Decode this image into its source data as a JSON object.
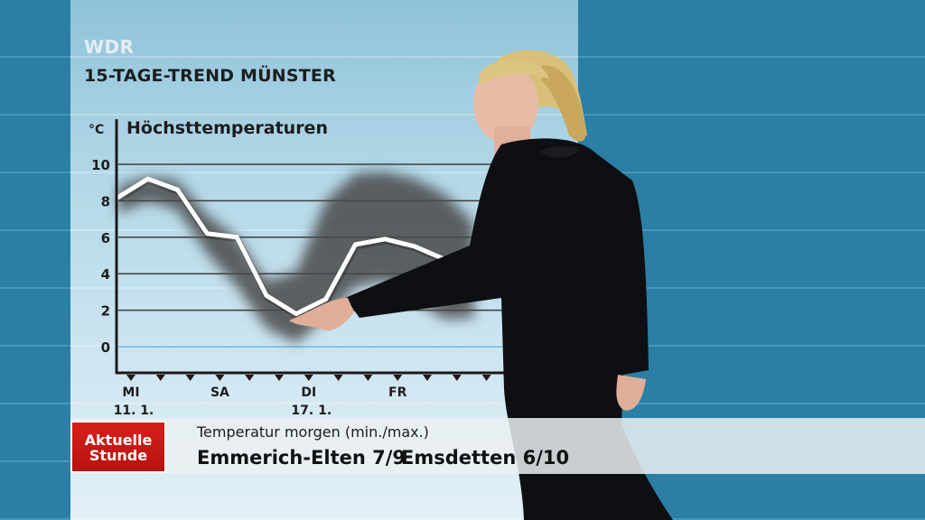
{
  "broadcaster": "WDR",
  "title": "15-TAGE-TREND MÜNSTER",
  "chart_data": {
    "type": "line",
    "title": "Höchsttemperaturen",
    "unit_label": "°C",
    "yticks": [
      10,
      8,
      6,
      4,
      2,
      0
    ],
    "ylim": [
      0,
      10
    ],
    "x": [
      0,
      1,
      2,
      3,
      4,
      5,
      6,
      7,
      8,
      9,
      10,
      11,
      12
    ],
    "values": [
      8.2,
      9.2,
      8.6,
      6.2,
      6.0,
      2.8,
      1.8,
      2.6,
      5.6,
      5.9,
      5.5,
      4.8,
      4.4
    ],
    "band_low": [
      7.3,
      8.0,
      7.5,
      5.1,
      3.3,
      1.0,
      0.2,
      1.6,
      3.3,
      3.6,
      2.6,
      1.5,
      1.6
    ],
    "band_high": [
      8.8,
      9.3,
      9.1,
      7.2,
      6.0,
      3.6,
      4.1,
      8.0,
      9.5,
      9.6,
      9.2,
      8.4,
      6.8
    ],
    "xlabels": [
      {
        "i": 0,
        "line1": "MI",
        "line2": "11. 1."
      },
      {
        "i": 3,
        "line1": "SA",
        "line2": ""
      },
      {
        "i": 6,
        "line1": "DI",
        "line2": "17. 1."
      },
      {
        "i": 9,
        "line1": "FR",
        "line2": ""
      }
    ],
    "grid": true
  },
  "ticker": {
    "brand_line1": "Aktuelle",
    "brand_line2": "Stunde",
    "label": "Temperatur morgen (min./max.)",
    "cities": [
      "Emmerich-Elten 7/9",
      "Emsdetten 6/10"
    ]
  },
  "colors": {
    "background": "#2b7ea4",
    "line": "#ffffff",
    "band": "#4a4a4a",
    "zero_line": "#7fc6e6",
    "badge": "#c8161a"
  }
}
